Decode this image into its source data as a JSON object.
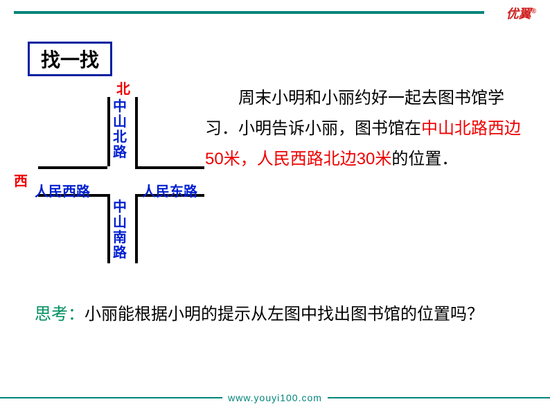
{
  "logo": {
    "text": "优翼",
    "mark": "®"
  },
  "title": "找一找",
  "diagram": {
    "north": "北",
    "west": "西",
    "zhongshan_north": "中山北路",
    "zhongshan_south": "中山南路",
    "renmin_west": "人民西路",
    "renmin_east": "人民东路",
    "road_color": "#000000",
    "compass_color": "#ef0000",
    "road_label_color": "#0020d0"
  },
  "paragraph": {
    "p1": "周末小明和小丽约好一起去图书馆学习．小明告诉小丽，图书馆在",
    "h1": "中山北路西边50米，人民西路北边30米",
    "p2": "的位置．",
    "highlight_color": "#ef0000",
    "fontsize": 24,
    "line_height": 44
  },
  "question": {
    "label": "思考：",
    "text": "小丽能根据小明的提示从左图中找出图书馆的位置吗？",
    "label_color": "#009060"
  },
  "footer": {
    "url": "www.youyi100.com",
    "rule_color": "#00847a"
  },
  "background_color": "#ffffff",
  "accent_color": "#00847a"
}
